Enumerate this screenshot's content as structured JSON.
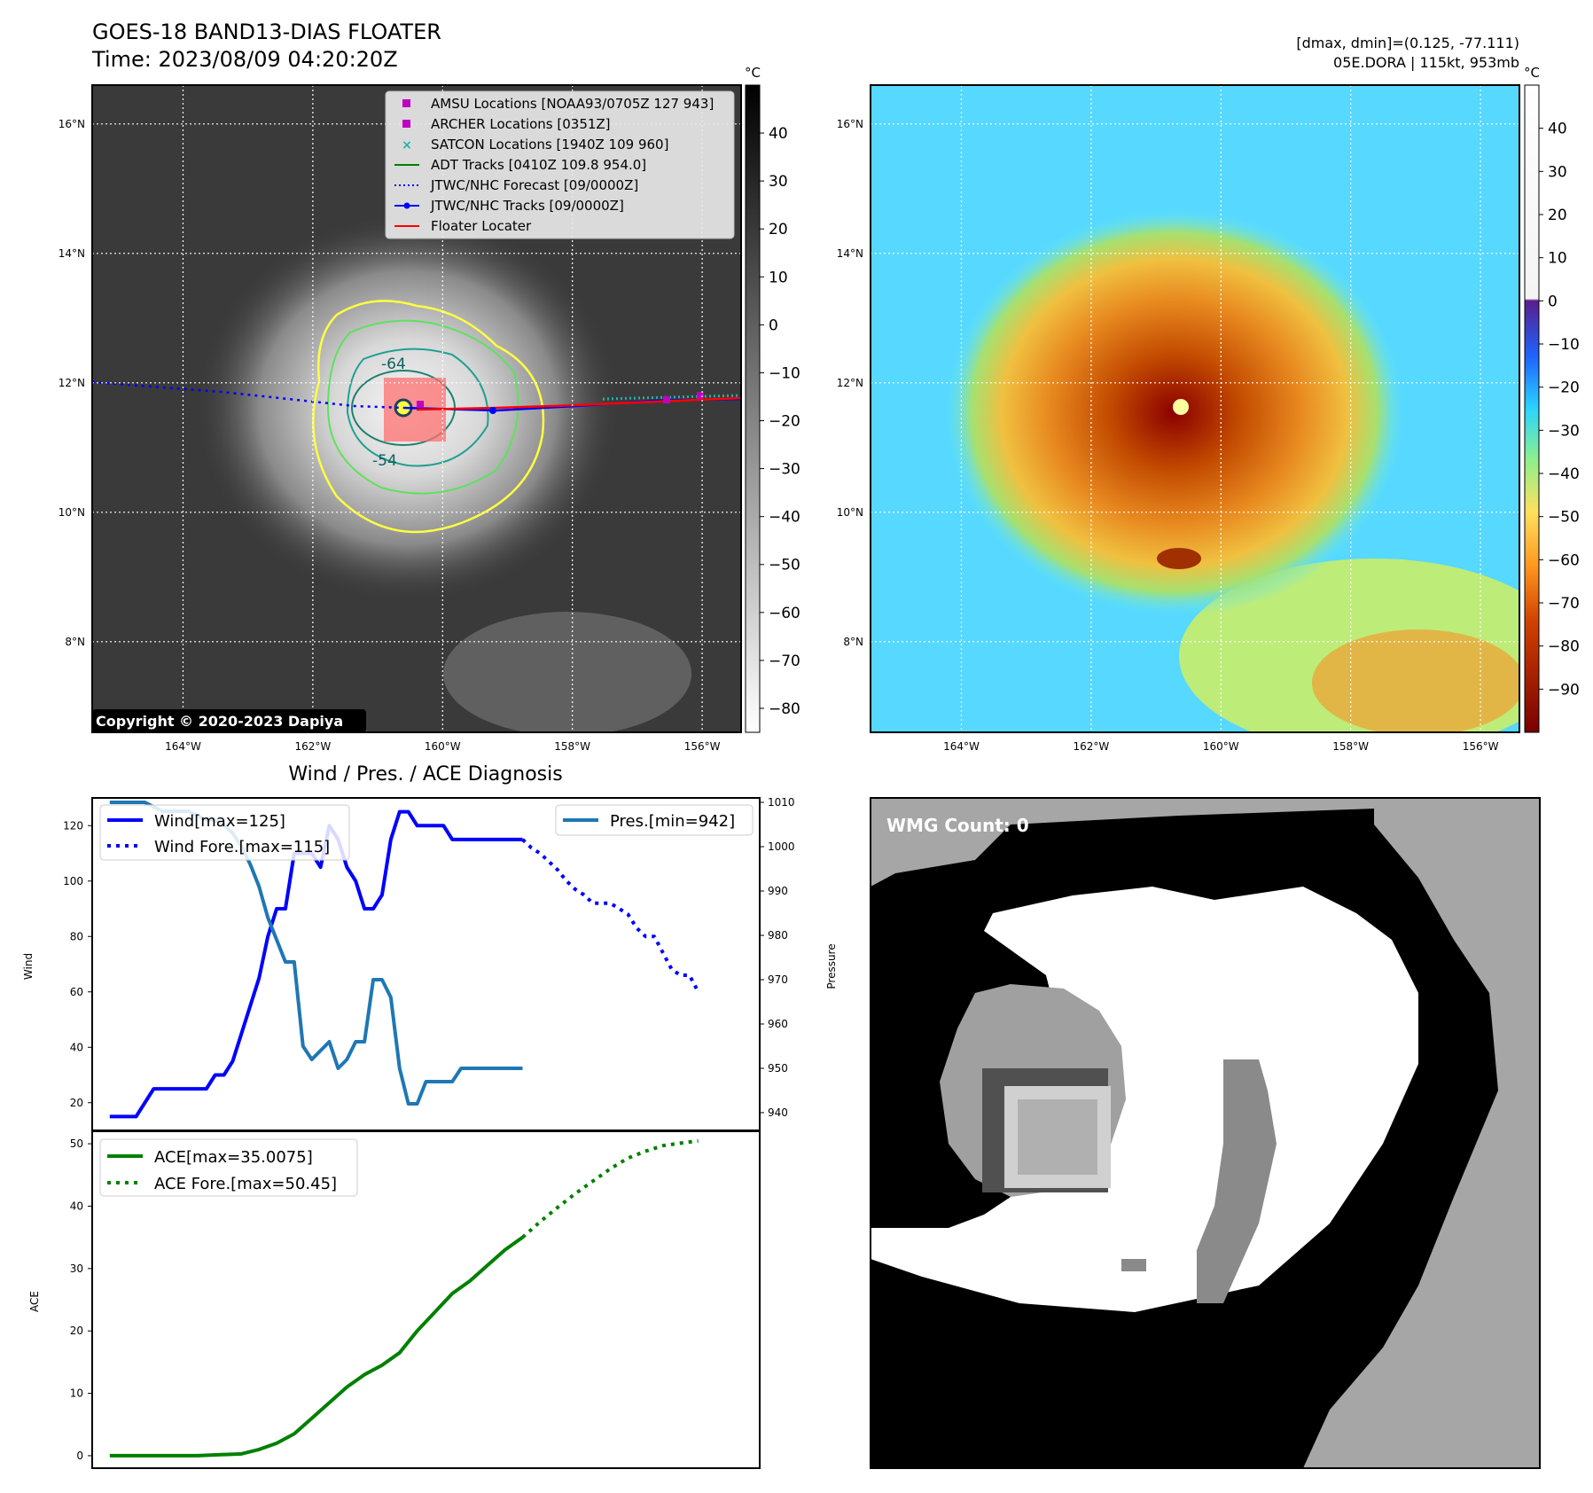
{
  "header": {
    "title": "GOES-18 BAND13-DIAS FLOATER",
    "time": "Time: 2023/08/09 04:20:20Z",
    "range_note": "[dmax, dmin]=(0.125, -77.111)",
    "storm_note": "05E.DORA | 115kt, 953mb",
    "copyright": "Copyright © 2020-2023 Dapiya"
  },
  "map": {
    "lat_ticks": [
      "16°N",
      "14°N",
      "12°N",
      "10°N",
      "8°N"
    ],
    "lat_values": [
      16,
      14,
      12,
      10,
      8
    ],
    "lon_ticks": [
      "164°W",
      "162°W",
      "160°W",
      "158°W",
      "156°W"
    ],
    "lon_values": [
      -164,
      -162,
      -160,
      -158,
      -156
    ],
    "lon_range": [
      -165.4,
      -155.4
    ],
    "lat_range": [
      6.6,
      16.6
    ],
    "storm_center": {
      "lon": -160.6,
      "lat": 11.45
    }
  },
  "ir_map": {
    "legend": [
      {
        "label": "AMSU Locations [NOAA93/0705Z 127 943]",
        "marker": "square",
        "color": "#c000c0"
      },
      {
        "label": "ARCHER Locations [0351Z]",
        "marker": "square",
        "color": "#c000c0"
      },
      {
        "label": "SATCON Locations [1940Z 109 960]",
        "marker": "x",
        "color": "#20b2aa"
      },
      {
        "label": "ADT Tracks [0410Z 109.8 954.0]",
        "marker": "line",
        "color": "#008000"
      },
      {
        "label": "JTWC/NHC Forecast [09/0000Z]",
        "marker": "dotted",
        "color": "#0000ff"
      },
      {
        "label": "JTWC/NHC Tracks [09/0000Z]",
        "marker": "line-dot",
        "color": "#0000ff"
      },
      {
        "label": "Floater Locater",
        "marker": "line",
        "color": "#ff0000"
      }
    ],
    "contour_labels": [
      "-64",
      "-54"
    ],
    "colorbar_unit": "°C",
    "colorbar_ticks": [
      "40",
      "30",
      "20",
      "10",
      "0",
      "−10",
      "−20",
      "−30",
      "−40",
      "−50",
      "−60",
      "−70",
      "−80"
    ],
    "colorbar_values": [
      40,
      30,
      20,
      10,
      0,
      -10,
      -20,
      -30,
      -40,
      -50,
      -60,
      -70,
      -80
    ],
    "colorbar_range": [
      -85,
      50
    ]
  },
  "color_map": {
    "colorbar_unit": "°C",
    "colorbar_ticks": [
      "40",
      "30",
      "20",
      "10",
      "0",
      "−10",
      "−20",
      "−30",
      "−40",
      "−50",
      "−60",
      "−70",
      "−80",
      "−90"
    ],
    "colorbar_values": [
      40,
      30,
      20,
      10,
      0,
      -10,
      -20,
      -30,
      -40,
      -50,
      -60,
      -70,
      -80,
      -90
    ],
    "colorbar_range": [
      -100,
      50
    ]
  },
  "wind_chart_title": "Wind / Pres. / ACE Diagnosis",
  "wmg": {
    "label": "WMG Count: 0"
  },
  "chart_data": [
    {
      "type": "line",
      "title": "Wind / Pres. / ACE Diagnosis",
      "ylabel": "Wind",
      "y2label": "Pressure",
      "ylim": [
        10,
        130
      ],
      "y2lim": [
        936,
        1011
      ],
      "yticks": [
        20,
        40,
        60,
        80,
        100,
        120
      ],
      "y2ticks": [
        940,
        950,
        960,
        970,
        980,
        990,
        1000,
        1010
      ],
      "xlim": [
        -2,
        74
      ],
      "series": [
        {
          "name": "Wind[max=125]",
          "axis": "left",
          "color": "#0000ff",
          "style": "solid",
          "x": [
            0,
            1,
            2,
            3,
            4,
            5,
            6,
            7,
            8,
            9,
            10,
            11,
            12,
            13,
            14,
            15,
            16,
            17,
            18,
            19,
            20,
            21,
            22,
            23,
            24,
            25,
            26,
            27,
            28,
            29,
            30,
            31,
            32,
            33,
            34,
            35,
            36,
            37,
            38,
            39,
            40,
            41,
            42,
            43,
            44,
            45,
            46,
            47
          ],
          "y": [
            15,
            15,
            15,
            15,
            20,
            25,
            25,
            25,
            25,
            25,
            25,
            25,
            30,
            30,
            35,
            45,
            55,
            65,
            80,
            90,
            90,
            110,
            110,
            110,
            105,
            120,
            115,
            105,
            100,
            90,
            90,
            95,
            115,
            125,
            125,
            120,
            120,
            120,
            120,
            115,
            115,
            115,
            115,
            115,
            115,
            115,
            115,
            115
          ]
        },
        {
          "name": "Wind Fore.[max=115]",
          "axis": "left",
          "color": "#0000ff",
          "style": "dotted",
          "x": [
            47,
            48,
            49,
            50,
            51,
            52,
            53,
            54,
            55,
            56,
            57,
            58,
            59,
            60,
            61,
            62,
            63,
            64,
            65,
            66,
            67
          ],
          "y": [
            115,
            112,
            110,
            107,
            104,
            100,
            97,
            95,
            92,
            92,
            92,
            90,
            88,
            83,
            80,
            80,
            74,
            68,
            66,
            66,
            60
          ]
        },
        {
          "name": "Pres.[min=942]",
          "axis": "right",
          "color": "#1f77b4",
          "style": "solid",
          "x": [
            0,
            1,
            2,
            3,
            4,
            5,
            6,
            7,
            8,
            9,
            10,
            11,
            12,
            13,
            14,
            15,
            16,
            17,
            18,
            19,
            20,
            21,
            22,
            23,
            24,
            25,
            26,
            27,
            28,
            29,
            30,
            31,
            32,
            33,
            34,
            35,
            36,
            37,
            38,
            39,
            40,
            41,
            42,
            43,
            44,
            45,
            46,
            47
          ],
          "y": [
            1010,
            1010,
            1010,
            1010,
            1010,
            1009,
            1008,
            1008,
            1008,
            1008,
            1007,
            1006,
            1006,
            1005,
            1003,
            1000,
            996,
            991,
            984,
            979,
            974,
            974,
            955,
            952,
            954,
            956,
            950,
            952,
            956,
            956,
            970,
            970,
            966,
            950,
            942,
            942,
            947,
            947,
            947,
            947,
            950,
            950,
            950,
            950,
            950,
            950,
            950,
            950
          ]
        }
      ]
    },
    {
      "type": "line",
      "ylabel": "ACE",
      "ylim": [
        -2,
        52
      ],
      "yticks": [
        0,
        10,
        20,
        30,
        40,
        50
      ],
      "xlim": [
        -2,
        74
      ],
      "series": [
        {
          "name": "ACE[max=35.0075]",
          "color": "#008000",
          "style": "solid",
          "x": [
            0,
            5,
            10,
            15,
            17,
            19,
            21,
            23,
            25,
            27,
            29,
            31,
            33,
            35,
            37,
            39,
            41,
            43,
            45,
            47
          ],
          "y": [
            0,
            0,
            0,
            0.3,
            1,
            2,
            3.5,
            6,
            8.5,
            11,
            13,
            14.5,
            16.5,
            20,
            23,
            26,
            28,
            30.5,
            33,
            35
          ]
        },
        {
          "name": "ACE Fore.[max=50.45]",
          "color": "#008000",
          "style": "dotted",
          "x": [
            47,
            49,
            51,
            53,
            55,
            57,
            59,
            61,
            63,
            65,
            67
          ],
          "y": [
            35,
            37.5,
            39.8,
            42,
            44,
            46,
            47.7,
            48.8,
            49.7,
            50.1,
            50.45
          ]
        }
      ]
    }
  ]
}
